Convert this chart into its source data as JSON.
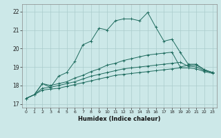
{
  "title": "",
  "xlabel": "Humidex (Indice chaleur)",
  "bg_color": "#cce8e8",
  "grid_color": "#aacccc",
  "line_color": "#1e6b5e",
  "xlim": [
    -0.5,
    23.5
  ],
  "ylim": [
    16.8,
    22.4
  ],
  "xticks": [
    0,
    1,
    2,
    3,
    4,
    5,
    6,
    7,
    8,
    9,
    10,
    11,
    12,
    13,
    14,
    15,
    16,
    17,
    18,
    19,
    20,
    21,
    22,
    23
  ],
  "yticks": [
    17,
    18,
    19,
    20,
    21,
    22
  ],
  "line1": [
    17.3,
    17.5,
    18.1,
    17.9,
    18.5,
    18.7,
    19.3,
    20.2,
    20.4,
    21.1,
    21.0,
    21.5,
    21.6,
    21.6,
    21.5,
    21.95,
    21.15,
    20.4,
    20.5,
    19.8,
    19.15,
    19.15,
    18.85,
    18.7
  ],
  "line2": [
    17.3,
    17.5,
    18.1,
    18.0,
    18.1,
    18.2,
    18.4,
    18.55,
    18.75,
    18.9,
    19.1,
    19.2,
    19.35,
    19.45,
    19.55,
    19.65,
    19.7,
    19.75,
    19.8,
    19.0,
    19.1,
    19.1,
    18.85,
    18.7
  ],
  "line3": [
    17.3,
    17.5,
    17.85,
    17.9,
    18.0,
    18.1,
    18.2,
    18.35,
    18.5,
    18.6,
    18.7,
    18.8,
    18.9,
    18.95,
    19.0,
    19.05,
    19.1,
    19.15,
    19.2,
    19.25,
    19.05,
    19.0,
    18.8,
    18.7
  ],
  "line4": [
    17.3,
    17.5,
    17.75,
    17.8,
    17.85,
    17.95,
    18.05,
    18.15,
    18.25,
    18.35,
    18.45,
    18.55,
    18.6,
    18.65,
    18.7,
    18.75,
    18.8,
    18.85,
    18.9,
    18.95,
    18.95,
    18.9,
    18.75,
    18.65
  ]
}
